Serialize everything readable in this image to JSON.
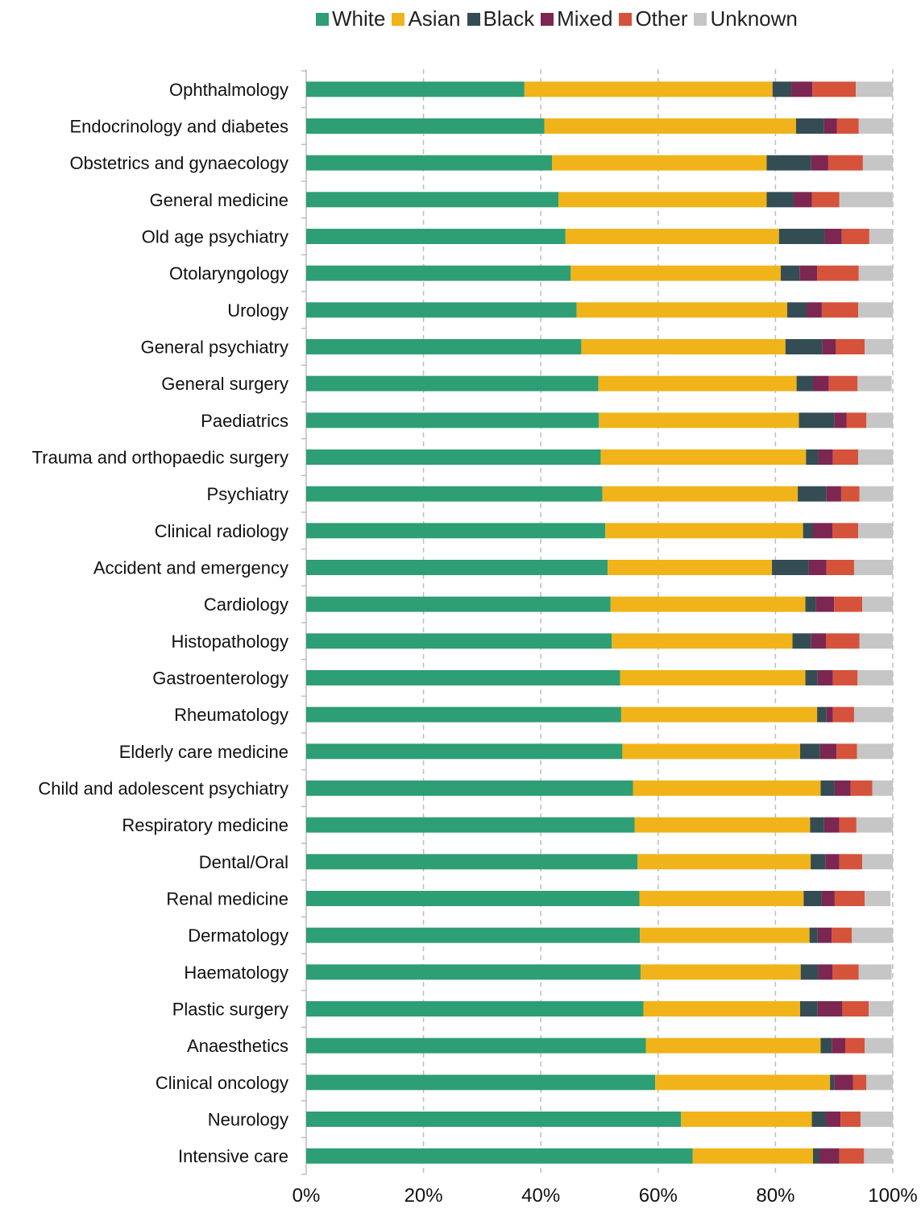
{
  "chart_data": {
    "type": "bar",
    "orientation": "horizontal",
    "stacked": "percent",
    "legend_position": "top",
    "grid": "vertical-dashed",
    "xlim": [
      0,
      100
    ],
    "x_ticks": [
      "0%",
      "20%",
      "40%",
      "60%",
      "80%",
      "100%"
    ],
    "categories": [
      "Ophthalmology",
      "Endocrinology and diabetes",
      "Obstetrics and gynaecology",
      "General medicine",
      "Old age psychiatry",
      "Otolaryngology",
      "Urology",
      "General psychiatry",
      "General surgery",
      "Paediatrics",
      "Trauma and orthopaedic surgery",
      "Psychiatry",
      "Clinical radiology",
      "Accident and emergency",
      "Cardiology",
      "Histopathology",
      "Gastroenterology",
      "Rheumatology",
      "Elderly care medicine",
      "Child and adolescent psychiatry",
      "Respiratory medicine",
      "Dental/Oral",
      "Renal medicine",
      "Dermatology",
      "Haematology",
      "Plastic surgery",
      "Anaesthetics",
      "Clinical oncology",
      "Neurology",
      "Intensive care"
    ],
    "series": [
      {
        "name": "White",
        "color": "#2e9e74",
        "values": [
          37.2,
          40.6,
          41.9,
          43.0,
          44.2,
          45.1,
          46.1,
          46.9,
          49.8,
          49.9,
          50.2,
          50.5,
          51.0,
          51.4,
          51.9,
          52.1,
          53.5,
          53.7,
          53.9,
          55.7,
          56.0,
          56.5,
          56.8,
          56.9,
          57.0,
          57.5,
          57.9,
          59.5,
          63.9,
          65.9
        ]
      },
      {
        "name": "Asian",
        "color": "#f0b41a",
        "values": [
          42.3,
          42.9,
          36.6,
          35.5,
          36.4,
          35.8,
          35.9,
          34.8,
          33.8,
          34.1,
          35.0,
          33.3,
          33.7,
          28.0,
          33.2,
          30.8,
          31.6,
          33.4,
          30.3,
          32.0,
          29.9,
          29.5,
          28.0,
          28.9,
          27.3,
          26.7,
          29.8,
          29.8,
          22.3,
          20.5
        ]
      },
      {
        "name": "Black",
        "color": "#344d54",
        "values": [
          3.2,
          4.8,
          7.6,
          4.6,
          7.8,
          3.2,
          3.3,
          6.3,
          2.8,
          6.0,
          2.1,
          4.9,
          1.7,
          6.3,
          1.8,
          3.2,
          2.1,
          1.6,
          3.4,
          2.4,
          2.4,
          2.5,
          3.1,
          1.4,
          3.0,
          3.0,
          1.9,
          0.7,
          2.4,
          1.1
        ]
      },
      {
        "name": "Mixed",
        "color": "#7b2752",
        "values": [
          3.6,
          2.2,
          2.9,
          3.1,
          2.9,
          3.0,
          2.6,
          2.3,
          2.7,
          2.1,
          2.5,
          2.5,
          3.3,
          3.0,
          3.1,
          2.5,
          2.6,
          1.1,
          2.8,
          2.7,
          2.6,
          2.4,
          2.2,
          2.4,
          2.4,
          4.2,
          2.3,
          3.2,
          2.5,
          3.4
        ]
      },
      {
        "name": "Other",
        "color": "#d5533b",
        "values": [
          7.4,
          3.7,
          5.9,
          4.7,
          4.7,
          7.1,
          6.2,
          4.9,
          4.9,
          3.4,
          4.3,
          3.1,
          4.4,
          4.7,
          4.8,
          5.7,
          4.2,
          3.6,
          3.5,
          3.7,
          2.9,
          3.9,
          5.1,
          3.4,
          4.5,
          4.5,
          3.3,
          2.3,
          3.4,
          4.2
        ]
      },
      {
        "name": "Unknown",
        "color": "#c6c6c6",
        "values": [
          6.3,
          5.8,
          5.1,
          9.1,
          4.0,
          5.8,
          5.9,
          4.8,
          5.8,
          4.5,
          5.9,
          5.7,
          5.9,
          6.6,
          5.2,
          5.7,
          6.0,
          6.6,
          6.1,
          3.5,
          6.2,
          5.2,
          4.4,
          7.0,
          5.6,
          4.1,
          4.9,
          4.5,
          5.5,
          4.8
        ]
      }
    ]
  }
}
